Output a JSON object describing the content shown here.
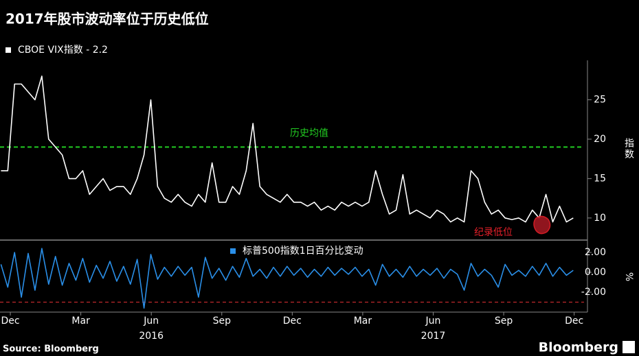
{
  "title": "2017年股市波动率位于历史低位",
  "source": "Source: Bloomberg",
  "logo": "Bloomberg",
  "chart_data": [
    {
      "type": "line",
      "y_label": "指数",
      "x": [
        -0.4,
        -0.11,
        0.18,
        0.47,
        0.76,
        1.05,
        1.34,
        1.63,
        1.92,
        2.21,
        2.5,
        2.79,
        3.08,
        3.37,
        3.66,
        3.95,
        4.24,
        4.53,
        4.82,
        5.11,
        5.4,
        5.69,
        5.98,
        6.27,
        6.56,
        6.85,
        7.14,
        7.43,
        7.72,
        8.01,
        8.3,
        8.59,
        8.88,
        9.17,
        9.46,
        9.75,
        10.04,
        10.33,
        10.62,
        10.91,
        11.2,
        11.49,
        11.78,
        12.07,
        12.36,
        12.65,
        12.94,
        13.23,
        13.52,
        13.81,
        14.1,
        14.39,
        14.68,
        14.97,
        15.26,
        15.55,
        15.84,
        16.13,
        16.42,
        16.71,
        17.0,
        17.29,
        17.58,
        17.87,
        18.16,
        18.45,
        18.74,
        19.03,
        19.32,
        19.61,
        19.9,
        20.19,
        20.48,
        20.77,
        21.06,
        21.35,
        21.64,
        21.93,
        22.22,
        22.51,
        22.8,
        23.09,
        23.38,
        23.67,
        23.96
      ],
      "series": [
        {
          "name": "CBOE VIX指数 - 2.2",
          "color": "#ffffff",
          "values": [
            16,
            16,
            27,
            27,
            26,
            25,
            28,
            20,
            19,
            18,
            15,
            15,
            16,
            13,
            14,
            15,
            13.5,
            14,
            14,
            13,
            15,
            18,
            25,
            14,
            12.5,
            12,
            13,
            12,
            11.5,
            13,
            12,
            17,
            12,
            12,
            14,
            13,
            16,
            22,
            14,
            13,
            12.5,
            12,
            13,
            12,
            12,
            11.5,
            12,
            11,
            11.5,
            11,
            12,
            11.5,
            12,
            11.5,
            12,
            16,
            13,
            10.5,
            11,
            15.5,
            10.5,
            11,
            10.5,
            10,
            11,
            10.5,
            9.5,
            10,
            9.5,
            16,
            15,
            12,
            10.5,
            11,
            10,
            9.8,
            10,
            9.5,
            11,
            10,
            13,
            9.5,
            11.5,
            9.5,
            10
          ]
        }
      ],
      "xlim": [
        -0.44,
        24.42
      ],
      "ylim": [
        7.2,
        30
      ],
      "yticks": [
        10,
        15,
        20,
        25
      ],
      "reference_line": {
        "value": 19,
        "label": "历史均值",
        "color": "#22cc22"
      },
      "annotation": {
        "label": "纪录低位",
        "color": "#e8202a"
      }
    },
    {
      "type": "line",
      "y_label": "%",
      "x": [
        -0.4,
        -0.11,
        0.18,
        0.47,
        0.76,
        1.05,
        1.34,
        1.63,
        1.92,
        2.21,
        2.5,
        2.79,
        3.08,
        3.37,
        3.66,
        3.95,
        4.24,
        4.53,
        4.82,
        5.11,
        5.4,
        5.69,
        5.98,
        6.27,
        6.56,
        6.85,
        7.14,
        7.43,
        7.72,
        8.01,
        8.3,
        8.59,
        8.88,
        9.17,
        9.46,
        9.75,
        10.04,
        10.33,
        10.62,
        10.91,
        11.2,
        11.49,
        11.78,
        12.07,
        12.36,
        12.65,
        12.94,
        13.23,
        13.52,
        13.81,
        14.1,
        14.39,
        14.68,
        14.97,
        15.26,
        15.55,
        15.84,
        16.13,
        16.42,
        16.71,
        17.0,
        17.29,
        17.58,
        17.87,
        18.16,
        18.45,
        18.74,
        19.03,
        19.32,
        19.61,
        19.9,
        20.19,
        20.48,
        20.77,
        21.06,
        21.35,
        21.64,
        21.93,
        22.22,
        22.51,
        22.8,
        23.09,
        23.38,
        23.67,
        23.96
      ],
      "series": [
        {
          "name": "标普500指数1日百分比变动",
          "color": "#2a8fe8",
          "values": [
            0.8,
            -1.5,
            2.0,
            -2.5,
            1.9,
            -1.8,
            2.4,
            -1.2,
            1.6,
            -1.3,
            0.9,
            -0.8,
            1.4,
            -1.0,
            0.7,
            -0.6,
            1.1,
            -0.9,
            0.6,
            -1.2,
            1.3,
            -3.6,
            1.8,
            -0.7,
            0.5,
            -0.4,
            0.6,
            -0.3,
            0.5,
            -2.5,
            1.5,
            -0.6,
            0.4,
            -0.8,
            0.6,
            -0.5,
            1.4,
            -0.4,
            0.3,
            -0.6,
            0.5,
            -0.4,
            0.6,
            -0.3,
            0.4,
            -0.5,
            0.3,
            -0.4,
            0.5,
            -0.3,
            0.4,
            -0.2,
            0.5,
            -0.4,
            0.3,
            -1.3,
            0.8,
            -0.4,
            0.3,
            -0.5,
            0.6,
            -0.4,
            0.3,
            -0.3,
            0.4,
            -0.6,
            0.3,
            -0.2,
            -1.8,
            0.9,
            -0.4,
            0.3,
            -0.3,
            -1.5,
            0.8,
            -0.3,
            0.2,
            -0.4,
            0.6,
            -0.3,
            0.9,
            -0.4,
            0.5,
            -0.3,
            0.2
          ]
        }
      ],
      "xlim": [
        -0.44,
        24.42
      ],
      "ylim": [
        -4,
        3.1
      ],
      "yticks": [
        {
          "value": 2,
          "label": "2.00"
        },
        {
          "value": 0,
          "label": "0.00"
        },
        {
          "value": -2,
          "label": "-2.00"
        }
      ],
      "reference_line": {
        "value": -3,
        "color": "#c0282c"
      },
      "xticks": [
        {
          "value": 0,
          "label": "Dec"
        },
        {
          "value": 3,
          "label": "Mar"
        },
        {
          "value": 6,
          "label": "Jun"
        },
        {
          "value": 9,
          "label": "Sep"
        },
        {
          "value": 12,
          "label": "Dec"
        },
        {
          "value": 15,
          "label": "Mar"
        },
        {
          "value": 18,
          "label": "Jun"
        },
        {
          "value": 21,
          "label": "Sep"
        },
        {
          "value": 24,
          "label": "Dec"
        }
      ],
      "year_labels": [
        {
          "value": 6,
          "label": "2016"
        },
        {
          "value": 18,
          "label": "2017"
        }
      ]
    }
  ]
}
